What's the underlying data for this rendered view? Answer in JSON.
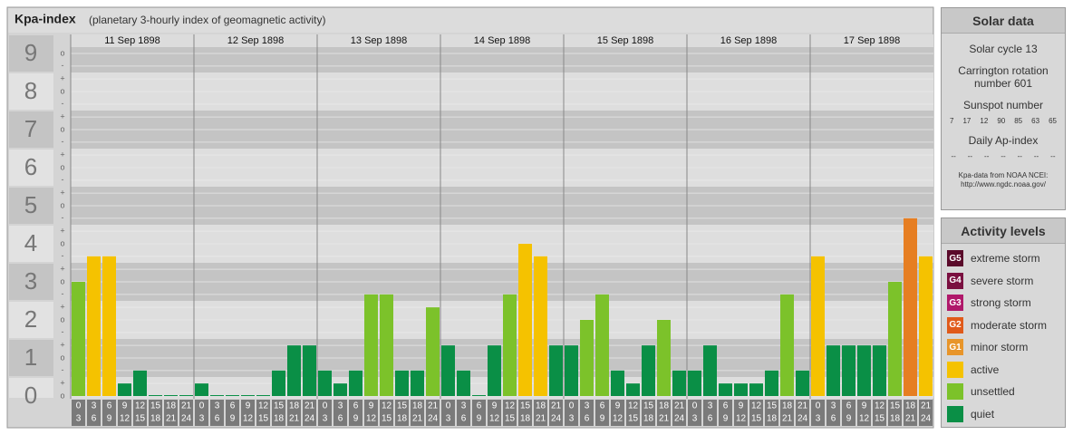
{
  "header": {
    "title": "Kpa-index",
    "subtitle": "(planetary 3-hourly index of geomagnetic activity)"
  },
  "chart_data": {
    "type": "bar",
    "ylim": [
      0,
      9.5
    ],
    "yticks": [
      0,
      1,
      2,
      3,
      4,
      5,
      6,
      7,
      8,
      9
    ],
    "minor_ticks": [
      {
        "value": 0,
        "label": "o"
      },
      {
        "value": 0.33,
        "label": "+"
      },
      {
        "value": 0.67,
        "label": "-"
      },
      {
        "value": 1,
        "label": "o"
      },
      {
        "value": 1.33,
        "label": "+"
      },
      {
        "value": 1.67,
        "label": "-"
      },
      {
        "value": 2,
        "label": "o"
      },
      {
        "value": 2.33,
        "label": "+"
      },
      {
        "value": 2.67,
        "label": "-"
      },
      {
        "value": 3,
        "label": "o"
      },
      {
        "value": 3.33,
        "label": "+"
      },
      {
        "value": 3.67,
        "label": "-"
      },
      {
        "value": 4,
        "label": "o"
      },
      {
        "value": 4.33,
        "label": "+"
      },
      {
        "value": 4.67,
        "label": "-"
      },
      {
        "value": 5,
        "label": "o"
      },
      {
        "value": 5.33,
        "label": "+"
      },
      {
        "value": 5.67,
        "label": "-"
      },
      {
        "value": 6,
        "label": "o"
      },
      {
        "value": 6.33,
        "label": "+"
      },
      {
        "value": 6.67,
        "label": "-"
      },
      {
        "value": 7,
        "label": "o"
      },
      {
        "value": 7.33,
        "label": "+"
      },
      {
        "value": 7.67,
        "label": "-"
      },
      {
        "value": 8,
        "label": "o"
      },
      {
        "value": 8.33,
        "label": "+"
      },
      {
        "value": 8.67,
        "label": "-"
      },
      {
        "value": 9,
        "label": "o"
      }
    ],
    "hours_start": [
      0,
      3,
      6,
      9,
      12,
      15,
      18,
      21
    ],
    "hours_end": [
      3,
      6,
      9,
      12,
      15,
      18,
      21,
      24
    ],
    "days": [
      {
        "date": "11 Sep 1898",
        "values": [
          3,
          3.67,
          3.67,
          0.33,
          0.67,
          0,
          0,
          0
        ],
        "colors": [
          "#7cc22a",
          "#f5c200",
          "#f5c200",
          "#0a8f46",
          "#0a8f46",
          "#0a8f46",
          "#0a8f46",
          "#0a8f46"
        ]
      },
      {
        "date": "12 Sep 1898",
        "values": [
          0.33,
          0,
          0,
          0,
          0,
          0.67,
          1.33,
          1.33
        ],
        "colors": [
          "#0a8f46",
          "#0a8f46",
          "#0a8f46",
          "#0a8f46",
          "#0a8f46",
          "#0a8f46",
          "#0a8f46",
          "#0a8f46"
        ]
      },
      {
        "date": "13 Sep 1898",
        "values": [
          0.67,
          0.33,
          0.67,
          2.67,
          2.67,
          0.67,
          0.67,
          2.33
        ],
        "colors": [
          "#0a8f46",
          "#0a8f46",
          "#0a8f46",
          "#7cc22a",
          "#7cc22a",
          "#0a8f46",
          "#0a8f46",
          "#7cc22a"
        ]
      },
      {
        "date": "14 Sep 1898",
        "values": [
          1.33,
          0.67,
          0,
          1.33,
          2.67,
          4,
          3.67,
          1.33
        ],
        "colors": [
          "#0a8f46",
          "#0a8f46",
          "#0a8f46",
          "#0a8f46",
          "#7cc22a",
          "#f5c200",
          "#f5c200",
          "#0a8f46"
        ]
      },
      {
        "date": "15 Sep 1898",
        "values": [
          1.33,
          2,
          2.67,
          0.67,
          0.33,
          1.33,
          2,
          0.67
        ],
        "colors": [
          "#0a8f46",
          "#7cc22a",
          "#7cc22a",
          "#0a8f46",
          "#0a8f46",
          "#0a8f46",
          "#7cc22a",
          "#0a8f46"
        ]
      },
      {
        "date": "16 Sep 1898",
        "values": [
          0.67,
          1.33,
          0.33,
          0.33,
          0.33,
          0.67,
          2.67,
          0.67
        ],
        "colors": [
          "#0a8f46",
          "#0a8f46",
          "#0a8f46",
          "#0a8f46",
          "#0a8f46",
          "#0a8f46",
          "#7cc22a",
          "#0a8f46"
        ]
      },
      {
        "date": "17 Sep 1898",
        "values": [
          3.67,
          1.33,
          1.33,
          1.33,
          1.33,
          3,
          4.67,
          3.67
        ],
        "colors": [
          "#f5c200",
          "#0a8f46",
          "#0a8f46",
          "#0a8f46",
          "#0a8f46",
          "#7cc22a",
          "#e67e22",
          "#f5c200"
        ]
      }
    ]
  },
  "solar": {
    "title": "Solar data",
    "cycle": "Solar cycle 13",
    "carrington": "Carrington rotation number 601",
    "sunspot_label": "Sunspot number",
    "sunspots": [
      7,
      17,
      12,
      90,
      85,
      63,
      65
    ],
    "ap_label": "Daily Ap-index",
    "ap": [
      "--",
      "--",
      "--",
      "--",
      "--",
      "--",
      "--"
    ],
    "source": "Kpa-data from NOAA NCEI:",
    "url": "http://www.ngdc.noaa.gov/"
  },
  "levels": {
    "title": "Activity levels",
    "items": [
      {
        "badge": "G5",
        "label": "extreme storm",
        "color": "#5a0a2a"
      },
      {
        "badge": "G4",
        "label": "severe storm",
        "color": "#7a1040"
      },
      {
        "badge": "G3",
        "label": "strong storm",
        "color": "#b0186a"
      },
      {
        "badge": "G2",
        "label": "moderate storm",
        "color": "#e05a1a"
      },
      {
        "badge": "G1",
        "label": "minor storm",
        "color": "#e8952a"
      },
      {
        "label": "active",
        "color": "#f5c200"
      },
      {
        "label": "unsettled",
        "color": "#7cc22a"
      },
      {
        "label": "quiet",
        "color": "#0a8f46"
      }
    ]
  }
}
